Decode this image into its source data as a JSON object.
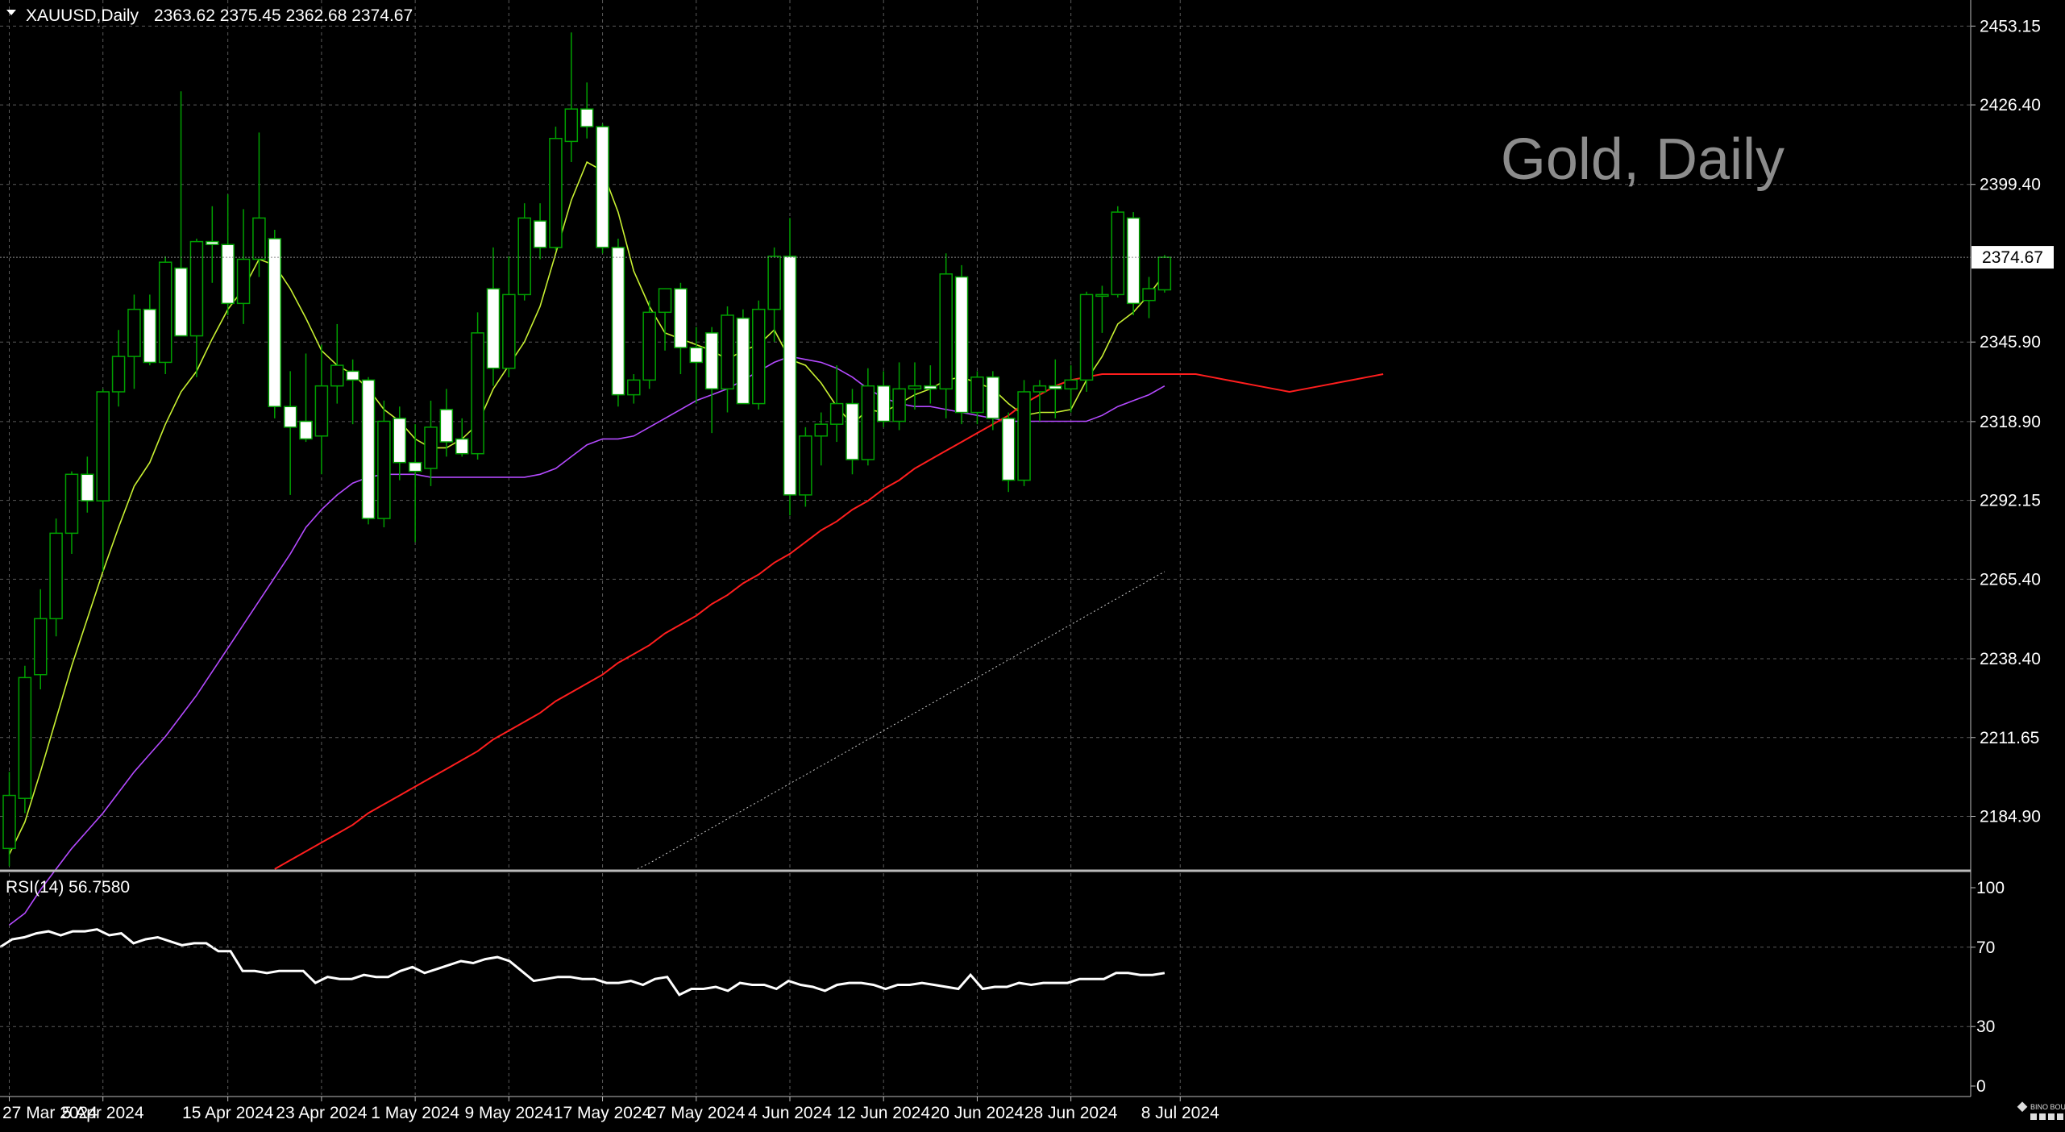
{
  "header": {
    "triangle_icon": "triangle-down-icon",
    "symbol": "XAUUSD,Daily",
    "ohlc": "2363.62 2375.45 2362.68 2374.67"
  },
  "watermark": "Gold, Daily",
  "price_label": "2374.67",
  "rsi": {
    "label": "RSI(14) 56.7580"
  },
  "logo_text": "BINO BOUND",
  "colors": {
    "background": "#000000",
    "grid": "#5a5a5a",
    "bull": "#00a000",
    "bear_body": "#ffffff",
    "ma_fast": "#c8f032",
    "ma_mid": "#b44aff",
    "ma_slow": "#ff1e1e",
    "ma_long": "#c8c8c8",
    "rsi_line": "#ffffff",
    "axis_text": "#ffffff"
  },
  "chart_data": {
    "type": "candlestick",
    "price_axis": {
      "ticks": [
        "2453.15",
        "2426.40",
        "2399.40",
        "2345.90",
        "2318.90",
        "2292.15",
        "2265.40",
        "2238.40",
        "2211.65",
        "2184.90"
      ],
      "tick_values": [
        2453.15,
        2426.4,
        2399.4,
        2345.9,
        2318.9,
        2292.15,
        2265.4,
        2238.4,
        2211.65,
        2184.9
      ],
      "range": [
        2166.7,
        2462.0
      ]
    },
    "date_axis": {
      "labels": [
        "27 Mar 2024",
        "5 Apr 2024",
        "15 Apr 2024",
        "23 Apr 2024",
        "1 May 2024",
        "9 May 2024",
        "17 May 2024",
        "27 May 2024",
        "4 Jun 2024",
        "12 Jun 2024",
        "20 Jun 2024",
        "28 Jun 2024",
        "8 Jul 2024"
      ],
      "label_index": [
        0,
        6,
        14,
        20,
        26,
        32,
        38,
        44,
        50,
        56,
        62,
        68,
        75
      ]
    },
    "candles": [
      {
        "o": 2174,
        "h": 2200,
        "l": 2168,
        "c": 2192
      },
      {
        "o": 2191,
        "h": 2236,
        "l": 2186,
        "c": 2232
      },
      {
        "o": 2233,
        "h": 2262,
        "l": 2228,
        "c": 2252
      },
      {
        "o": 2252,
        "h": 2286,
        "l": 2246,
        "c": 2281
      },
      {
        "o": 2281,
        "h": 2302,
        "l": 2274,
        "c": 2301
      },
      {
        "o": 2301,
        "h": 2307,
        "l": 2288,
        "c": 2292
      },
      {
        "o": 2292,
        "h": 2330,
        "l": 2268,
        "c": 2329
      },
      {
        "o": 2329,
        "h": 2350,
        "l": 2324,
        "c": 2341
      },
      {
        "o": 2341,
        "h": 2362,
        "l": 2330,
        "c": 2357
      },
      {
        "o": 2357,
        "h": 2362,
        "l": 2338,
        "c": 2339
      },
      {
        "o": 2339,
        "h": 2375,
        "l": 2335,
        "c": 2373
      },
      {
        "o": 2371,
        "h": 2431,
        "l": 2348,
        "c": 2348
      },
      {
        "o": 2348,
        "h": 2381,
        "l": 2334,
        "c": 2380
      },
      {
        "o": 2380,
        "h": 2392,
        "l": 2366,
        "c": 2379
      },
      {
        "o": 2379,
        "h": 2396,
        "l": 2355,
        "c": 2359
      },
      {
        "o": 2359,
        "h": 2391,
        "l": 2352,
        "c": 2374
      },
      {
        "o": 2374,
        "h": 2417,
        "l": 2368,
        "c": 2388
      },
      {
        "o": 2381,
        "h": 2384,
        "l": 2320,
        "c": 2324
      },
      {
        "o": 2324,
        "h": 2336,
        "l": 2294,
        "c": 2317
      },
      {
        "o": 2319,
        "h": 2342,
        "l": 2312,
        "c": 2313
      },
      {
        "o": 2314,
        "h": 2345,
        "l": 2301,
        "c": 2331
      },
      {
        "o": 2331,
        "h": 2352,
        "l": 2325,
        "c": 2338
      },
      {
        "o": 2336,
        "h": 2340,
        "l": 2318,
        "c": 2333
      },
      {
        "o": 2333,
        "h": 2334,
        "l": 2284,
        "c": 2286
      },
      {
        "o": 2286,
        "h": 2326,
        "l": 2283,
        "c": 2319
      },
      {
        "o": 2320,
        "h": 2324,
        "l": 2299,
        "c": 2305
      },
      {
        "o": 2305,
        "h": 2318,
        "l": 2278,
        "c": 2302
      },
      {
        "o": 2303,
        "h": 2326,
        "l": 2297,
        "c": 2317
      },
      {
        "o": 2323,
        "h": 2330,
        "l": 2307,
        "c": 2312
      },
      {
        "o": 2313,
        "h": 2320,
        "l": 2307,
        "c": 2308
      },
      {
        "o": 2308,
        "h": 2356,
        "l": 2306,
        "c": 2349
      },
      {
        "o": 2364,
        "h": 2378,
        "l": 2331,
        "c": 2337
      },
      {
        "o": 2337,
        "h": 2375,
        "l": 2334,
        "c": 2362
      },
      {
        "o": 2362,
        "h": 2393,
        "l": 2360,
        "c": 2388
      },
      {
        "o": 2387,
        "h": 2393,
        "l": 2374,
        "c": 2378
      },
      {
        "o": 2378,
        "h": 2419,
        "l": 2377,
        "c": 2415
      },
      {
        "o": 2414,
        "h": 2451,
        "l": 2407,
        "c": 2425
      },
      {
        "o": 2425,
        "h": 2434,
        "l": 2415,
        "c": 2419
      },
      {
        "o": 2419,
        "h": 2420,
        "l": 2376,
        "c": 2378
      },
      {
        "o": 2378,
        "h": 2381,
        "l": 2324,
        "c": 2328
      },
      {
        "o": 2328,
        "h": 2335,
        "l": 2325,
        "c": 2333
      },
      {
        "o": 2333,
        "h": 2360,
        "l": 2330,
        "c": 2356
      },
      {
        "o": 2356,
        "h": 2363,
        "l": 2343,
        "c": 2364
      },
      {
        "o": 2364,
        "h": 2366,
        "l": 2335,
        "c": 2344
      },
      {
        "o": 2344,
        "h": 2351,
        "l": 2325,
        "c": 2339
      },
      {
        "o": 2349,
        "h": 2351,
        "l": 2315,
        "c": 2330
      },
      {
        "o": 2330,
        "h": 2358,
        "l": 2322,
        "c": 2355
      },
      {
        "o": 2354,
        "h": 2357,
        "l": 2325,
        "c": 2325
      },
      {
        "o": 2325,
        "h": 2360,
        "l": 2323,
        "c": 2357
      },
      {
        "o": 2357,
        "h": 2378,
        "l": 2346,
        "c": 2375
      },
      {
        "o": 2375,
        "h": 2388,
        "l": 2287,
        "c": 2294
      },
      {
        "o": 2294,
        "h": 2317,
        "l": 2290,
        "c": 2314
      },
      {
        "o": 2314,
        "h": 2322,
        "l": 2304,
        "c": 2318
      },
      {
        "o": 2318,
        "h": 2338,
        "l": 2312,
        "c": 2325
      },
      {
        "o": 2325,
        "h": 2330,
        "l": 2301,
        "c": 2306
      },
      {
        "o": 2306,
        "h": 2337,
        "l": 2304,
        "c": 2331
      },
      {
        "o": 2331,
        "h": 2336,
        "l": 2317,
        "c": 2319
      },
      {
        "o": 2319,
        "h": 2339,
        "l": 2316,
        "c": 2330
      },
      {
        "o": 2330,
        "h": 2339,
        "l": 2323,
        "c": 2331
      },
      {
        "o": 2331,
        "h": 2338,
        "l": 2325,
        "c": 2330
      },
      {
        "o": 2330,
        "h": 2376,
        "l": 2320,
        "c": 2369
      },
      {
        "o": 2368,
        "h": 2372,
        "l": 2318,
        "c": 2322
      },
      {
        "o": 2322,
        "h": 2336,
        "l": 2318,
        "c": 2334
      },
      {
        "o": 2334,
        "h": 2336,
        "l": 2316,
        "c": 2320
      },
      {
        "o": 2320,
        "h": 2322,
        "l": 2295,
        "c": 2299
      },
      {
        "o": 2299,
        "h": 2333,
        "l": 2297,
        "c": 2329
      },
      {
        "o": 2329,
        "h": 2333,
        "l": 2319,
        "c": 2331
      },
      {
        "o": 2331,
        "h": 2340,
        "l": 2320,
        "c": 2330
      },
      {
        "o": 2330,
        "h": 2338,
        "l": 2322,
        "c": 2333
      },
      {
        "o": 2333,
        "h": 2363,
        "l": 2329,
        "c": 2362
      },
      {
        "o": 2362,
        "h": 2365,
        "l": 2349,
        "c": 2362
      },
      {
        "o": 2362,
        "h": 2392,
        "l": 2361,
        "c": 2390
      },
      {
        "o": 2388,
        "h": 2390,
        "l": 2355,
        "c": 2359
      },
      {
        "o": 2360,
        "h": 2368,
        "l": 2354,
        "c": 2364
      },
      {
        "o": 2363.62,
        "h": 2375.45,
        "l": 2362.68,
        "c": 2374.67
      }
    ],
    "moving_averages": [
      {
        "key": "ma_fast",
        "values": [
          2172,
          2183,
          2200,
          2218,
          2236,
          2252,
          2268,
          2283,
          2297,
          2305,
          2318,
          2329,
          2336,
          2347,
          2357,
          2364,
          2374,
          2372,
          2364,
          2354,
          2343,
          2338,
          2335,
          2330,
          2323,
          2319,
          2313,
          2310,
          2310,
          2313,
          2318,
          2330,
          2338,
          2346,
          2358,
          2376,
          2394,
          2407,
          2404,
          2390,
          2370,
          2358,
          2349,
          2347,
          2345,
          2343,
          2340,
          2343,
          2345,
          2350,
          2340,
          2338,
          2332,
          2324,
          2318,
          2323,
          2322,
          2325,
          2328,
          2330,
          2333,
          2334,
          2332,
          2330,
          2325,
          2321,
          2322,
          2322,
          2323,
          2333,
          2341,
          2352,
          2356,
          2362,
          2369
        ]
      },
      {
        "key": "ma_mid",
        "values": [
          2148,
          2152,
          2160,
          2167,
          2174,
          2180,
          2186,
          2193,
          2200,
          2206,
          2212,
          2219,
          2226,
          2234,
          2242,
          2250,
          2258,
          2266,
          2274,
          2283,
          2289,
          2294,
          2298,
          2300,
          2301,
          2301,
          2301,
          2300,
          2300,
          2300,
          2300,
          2300,
          2300,
          2300,
          2301,
          2303,
          2307,
          2311,
          2313,
          2313,
          2314,
          2317,
          2320,
          2323,
          2326,
          2328,
          2330,
          2333,
          2336,
          2339,
          2341,
          2340,
          2339,
          2337,
          2334,
          2330,
          2327,
          2325,
          2324,
          2324,
          2323,
          2322,
          2321,
          2320,
          2319,
          2319,
          2319,
          2319,
          2319,
          2319,
          2321,
          2324,
          2326,
          2328,
          2331
        ]
      },
      {
        "key": "ma_slow",
        "start": 17,
        "values": [
          2167,
          2170,
          2173,
          2176,
          2179,
          2182,
          2186,
          2189,
          2192,
          2195,
          2198,
          2201,
          2204,
          2207,
          2211,
          2214,
          2217,
          2220,
          2224,
          2227,
          2230,
          2233,
          2237,
          2240,
          2243,
          2247,
          2250,
          2253,
          2257,
          2260,
          2264,
          2267,
          2271,
          2274,
          2278,
          2282,
          2285,
          2289,
          2292,
          2296,
          2299,
          2303,
          2306,
          2309,
          2312,
          2315,
          2318,
          2321,
          2325,
          2328,
          2331,
          2333,
          2334,
          2335,
          2335,
          2335,
          2335,
          2335,
          2335,
          2335,
          2334,
          2333,
          2332,
          2331,
          2330,
          2329,
          2330,
          2331,
          2332,
          2333,
          2334,
          2335
        ]
      }
    ],
    "long_ma_dotted": {
      "start": 40,
      "values": [
        2166.5,
        2169,
        2172,
        2175,
        2178,
        2181,
        2184,
        2187,
        2190,
        2193,
        2196,
        2199,
        2202,
        2205,
        2208,
        2211,
        2214,
        2217,
        2220,
        2223,
        2226,
        2229,
        2232,
        2235,
        2238,
        2241,
        2244,
        2247,
        2250,
        2253,
        2256,
        2259,
        2262,
        2265,
        2268
      ]
    },
    "rsi_axis": {
      "ticks": [
        "100",
        "70",
        "30",
        "0"
      ],
      "tick_values": [
        100,
        70,
        30,
        0
      ]
    },
    "rsi_values": [
      70,
      74,
      75,
      77,
      78,
      76,
      78,
      78,
      79,
      76,
      77,
      72,
      74,
      75,
      73,
      71,
      72,
      72,
      68,
      68,
      58,
      58,
      57,
      58,
      58,
      58,
      52,
      55,
      54,
      54,
      56,
      55,
      55,
      58,
      60,
      57,
      59,
      61,
      63,
      62,
      64,
      65,
      63,
      58,
      53,
      54,
      55,
      55,
      54,
      54,
      52,
      52,
      53,
      51,
      54,
      55,
      46,
      49,
      49,
      50,
      48,
      52,
      51,
      51,
      49,
      53,
      51,
      50,
      48,
      51,
      52,
      52,
      51,
      49,
      51,
      51,
      52,
      51,
      50,
      49,
      56,
      49,
      50,
      50,
      52,
      51,
      52,
      52,
      52,
      54,
      54,
      54,
      57,
      57,
      56,
      56,
      57
    ]
  }
}
